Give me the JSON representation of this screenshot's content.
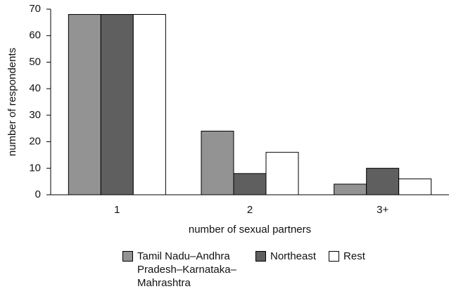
{
  "chart_data": {
    "type": "bar",
    "x_label": "number of sexual partners",
    "y_label": "number of respondents",
    "categories": [
      "1",
      "2",
      "3+"
    ],
    "series": [
      {
        "name": "Tamil Nadu–Andhra Pradesh–Karnataka–Mahrashtra",
        "color": "#939393",
        "values": [
          68,
          24,
          4
        ]
      },
      {
        "name": "Northeast",
        "color": "#5f5f5f",
        "values": [
          68,
          8,
          10
        ]
      },
      {
        "name": "Rest",
        "color": "#ffffff",
        "values": [
          68,
          16,
          6
        ]
      }
    ],
    "ylim": [
      0,
      70
    ],
    "yticks": [
      0,
      10,
      20,
      30,
      40,
      50,
      60,
      70
    ],
    "grid": false,
    "legend": "bottom"
  }
}
